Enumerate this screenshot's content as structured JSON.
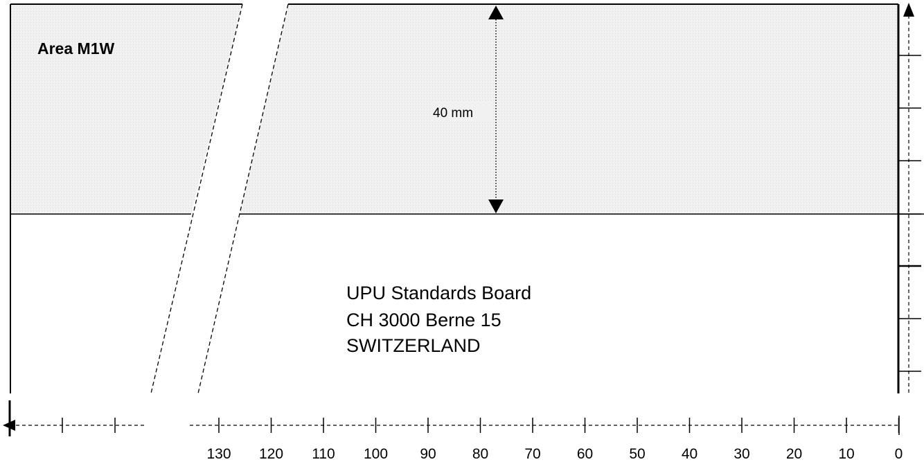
{
  "area_label": "Area M1W",
  "dimension_label": "40 mm",
  "address": {
    "line1": "UPU Standards Board",
    "line2": "CH 3000 Berne 15",
    "line3": "SWITZERLAND"
  },
  "ruler": {
    "ticks": [
      "130",
      "120",
      "110",
      "100",
      "90",
      "80",
      "70",
      "60",
      "50",
      "40",
      "30",
      "20",
      "10",
      "0"
    ]
  },
  "colors": {
    "area_fill": "#eeeeee",
    "line": "#000000"
  }
}
